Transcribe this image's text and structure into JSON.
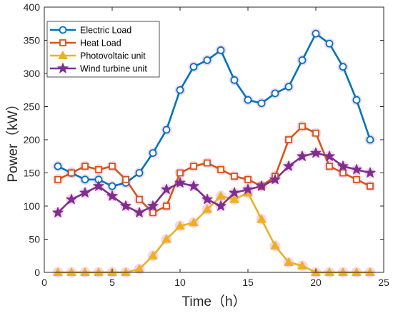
{
  "chart_data": {
    "type": "line",
    "xlabel": "Time（h）",
    "ylabel": "Power（kW）",
    "xlim": [
      0,
      25
    ],
    "ylim": [
      0,
      400
    ],
    "xticks": [
      0,
      5,
      10,
      15,
      20,
      25
    ],
    "yticks": [
      0,
      50,
      100,
      150,
      200,
      250,
      300,
      350,
      400
    ],
    "grid": false,
    "legend_position": "top-left",
    "x": [
      1,
      2,
      3,
      4,
      5,
      6,
      7,
      8,
      9,
      10,
      11,
      12,
      13,
      14,
      15,
      16,
      17,
      18,
      19,
      20,
      21,
      22,
      23,
      24
    ],
    "series": [
      {
        "name": "Electric Load",
        "color": "#0072BD",
        "marker": "circle",
        "values": [
          160,
          150,
          140,
          140,
          130,
          135,
          150,
          180,
          215,
          275,
          310,
          320,
          335,
          290,
          260,
          255,
          270,
          280,
          320,
          360,
          345,
          310,
          260,
          200
        ]
      },
      {
        "name": "Heat Load",
        "color": "#D95319",
        "marker": "square",
        "values": [
          140,
          150,
          160,
          155,
          160,
          140,
          110,
          90,
          100,
          150,
          160,
          165,
          155,
          145,
          140,
          130,
          145,
          200,
          220,
          210,
          160,
          150,
          140,
          130
        ]
      },
      {
        "name": "Photovoltaic unit",
        "color": "#EDB120",
        "marker": "triangle",
        "values": [
          0,
          0,
          0,
          0,
          0,
          0,
          5,
          25,
          50,
          70,
          75,
          95,
          115,
          110,
          120,
          80,
          40,
          15,
          10,
          0,
          0,
          0,
          0,
          0
        ]
      },
      {
        "name": "Wind turbine unit",
        "color": "#7E2F8E",
        "marker": "star",
        "values": [
          90,
          110,
          120,
          130,
          115,
          100,
          90,
          100,
          125,
          135,
          130,
          110,
          100,
          120,
          125,
          130,
          140,
          160,
          175,
          180,
          175,
          160,
          155,
          150
        ]
      }
    ]
  }
}
